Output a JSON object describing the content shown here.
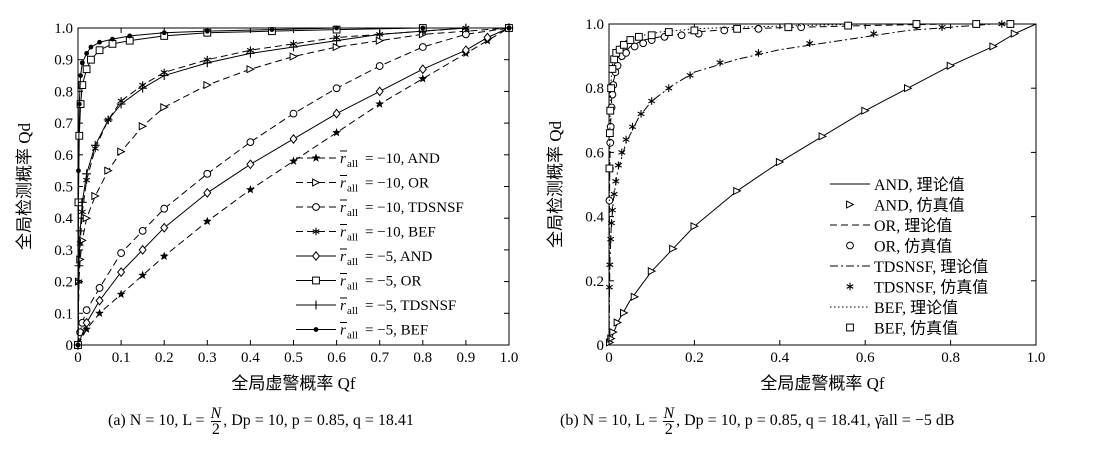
{
  "chart_data": [
    {
      "type": "line",
      "panel_label": "(a)",
      "caption": "(a) N = 10, L = N/2, Dp = 10, p = 0.85, q = 18.41",
      "caption_parts": {
        "prefix": "(a) N = 10, L = ",
        "frac_num": "N",
        "frac_den": "2",
        "suffix": ", Dp = 10, p = 0.85, q = 18.41"
      },
      "xlabel": "全局虚警概率 Qf",
      "ylabel": "全局检测概率 Qd",
      "xlim": [
        0,
        1
      ],
      "ylim": [
        0,
        1
      ],
      "xticks": [
        "0",
        "0.1",
        "0.2",
        "0.3",
        "0.4",
        "0.5",
        "0.6",
        "0.7",
        "0.8",
        "0.9",
        "1.0"
      ],
      "yticks": [
        "0",
        "0.1",
        "0.2",
        "0.3",
        "0.4",
        "0.5",
        "0.6",
        "0.7",
        "0.8",
        "0.9",
        "1.0"
      ],
      "grid": false,
      "legend_position": "bottom-right",
      "series": [
        {
          "name": "r̄all = −10, AND",
          "line": "dashed",
          "marker": "star",
          "x": [
            0,
            0.02,
            0.05,
            0.1,
            0.15,
            0.2,
            0.3,
            0.4,
            0.5,
            0.6,
            0.7,
            0.8,
            0.9,
            0.95,
            1.0
          ],
          "y": [
            0,
            0.05,
            0.1,
            0.16,
            0.22,
            0.28,
            0.39,
            0.49,
            0.58,
            0.67,
            0.76,
            0.84,
            0.92,
            0.96,
            1.0
          ]
        },
        {
          "name": "r̄all = −10, OR",
          "line": "dashed",
          "marker": "triangle",
          "x": [
            0,
            0.002,
            0.005,
            0.01,
            0.02,
            0.04,
            0.07,
            0.1,
            0.15,
            0.2,
            0.3,
            0.4,
            0.5,
            0.6,
            0.7,
            0.8,
            0.9,
            1.0
          ],
          "y": [
            0,
            0.2,
            0.27,
            0.33,
            0.4,
            0.47,
            0.55,
            0.61,
            0.69,
            0.75,
            0.82,
            0.87,
            0.91,
            0.94,
            0.96,
            0.98,
            0.99,
            1.0
          ]
        },
        {
          "name": "r̄all = −10, TDSNSF",
          "line": "dashed",
          "marker": "circle",
          "x": [
            0,
            0.005,
            0.01,
            0.02,
            0.05,
            0.1,
            0.15,
            0.2,
            0.3,
            0.4,
            0.5,
            0.6,
            0.7,
            0.8,
            0.9,
            1.0
          ],
          "y": [
            0,
            0.04,
            0.07,
            0.11,
            0.18,
            0.29,
            0.36,
            0.43,
            0.54,
            0.64,
            0.73,
            0.81,
            0.88,
            0.94,
            0.98,
            1.0
          ]
        },
        {
          "name": "r̄all = −10, BEF",
          "line": "dashed",
          "marker": "asterisk",
          "x": [
            0,
            0.002,
            0.005,
            0.01,
            0.02,
            0.04,
            0.07,
            0.1,
            0.15,
            0.2,
            0.3,
            0.4,
            0.5,
            0.6,
            0.7,
            0.8,
            0.9,
            1.0
          ],
          "y": [
            0,
            0.2,
            0.32,
            0.42,
            0.52,
            0.62,
            0.71,
            0.77,
            0.82,
            0.86,
            0.9,
            0.93,
            0.95,
            0.97,
            0.98,
            0.99,
            1.0,
            1.0
          ]
        },
        {
          "name": "r̄all = −5, AND",
          "line": "solid",
          "marker": "diamond",
          "x": [
            0,
            0.02,
            0.05,
            0.1,
            0.15,
            0.2,
            0.3,
            0.4,
            0.5,
            0.6,
            0.7,
            0.8,
            0.9,
            0.95,
            1.0
          ],
          "y": [
            0,
            0.07,
            0.14,
            0.23,
            0.3,
            0.37,
            0.48,
            0.57,
            0.65,
            0.73,
            0.8,
            0.87,
            0.93,
            0.97,
            1.0
          ]
        },
        {
          "name": "r̄all = −5, OR",
          "line": "solid",
          "marker": "square",
          "x": [
            0,
            0.001,
            0.003,
            0.006,
            0.01,
            0.02,
            0.03,
            0.05,
            0.08,
            0.12,
            0.2,
            0.3,
            0.45,
            0.6,
            0.8,
            1.0
          ],
          "y": [
            0,
            0.45,
            0.66,
            0.76,
            0.82,
            0.87,
            0.9,
            0.93,
            0.95,
            0.96,
            0.975,
            0.985,
            0.99,
            0.995,
            1.0,
            1.0
          ]
        },
        {
          "name": "r̄all = −5, TDSNSF",
          "line": "solid",
          "marker": "plus",
          "x": [
            0,
            0.002,
            0.005,
            0.01,
            0.02,
            0.04,
            0.07,
            0.1,
            0.15,
            0.2,
            0.3,
            0.4,
            0.5,
            0.6,
            0.7,
            0.8,
            0.9,
            1.0
          ],
          "y": [
            0,
            0.25,
            0.36,
            0.45,
            0.54,
            0.63,
            0.71,
            0.76,
            0.81,
            0.85,
            0.89,
            0.92,
            0.94,
            0.96,
            0.98,
            0.99,
            1.0,
            1.0
          ]
        },
        {
          "name": "r̄all = −5, BEF",
          "line": "solid",
          "marker": "dot",
          "x": [
            0,
            0.001,
            0.003,
            0.006,
            0.01,
            0.02,
            0.03,
            0.05,
            0.08,
            0.12,
            0.2,
            0.3,
            0.45,
            0.6,
            0.8,
            1.0
          ],
          "y": [
            0,
            0.55,
            0.76,
            0.85,
            0.89,
            0.92,
            0.94,
            0.955,
            0.965,
            0.975,
            0.985,
            0.99,
            0.995,
            1.0,
            1.0,
            1.0
          ]
        }
      ],
      "legend": [
        {
          "prefix": "r",
          "sub": "all",
          "value": "= −10, AND"
        },
        {
          "prefix": "r",
          "sub": "all",
          "value": "= −10, OR"
        },
        {
          "prefix": "r",
          "sub": "all",
          "value": "= −10, TDSNSF"
        },
        {
          "prefix": "r",
          "sub": "all",
          "value": "= −10, BEF"
        },
        {
          "prefix": "r",
          "sub": "all",
          "value": "= −5, AND"
        },
        {
          "prefix": "r",
          "sub": "all",
          "value": "= −5, OR"
        },
        {
          "prefix": "r",
          "sub": "all",
          "value": "= −5, TDSNSF"
        },
        {
          "prefix": "r",
          "sub": "all",
          "value": "= −5, BEF"
        }
      ]
    },
    {
      "type": "line",
      "panel_label": "(b)",
      "caption": "(b) N = 10, L = N/2, Dp = 10, p = 0.85, q = 18.41, γ̄all = −5 dB",
      "caption_parts": {
        "prefix": "(b) N = 10, L = ",
        "frac_num": "N",
        "frac_den": "2",
        "suffix": ", Dp = 10, p = 0.85, q = 18.41, γ̄all = −5 dB"
      },
      "xlabel": "全局虚警概率 Qf",
      "ylabel": "全局检测概率 Qd",
      "xlim": [
        0,
        1
      ],
      "ylim": [
        0,
        1
      ],
      "xticks": [
        "0",
        "0.2",
        "0.4",
        "0.6",
        "0.8",
        "1.0"
      ],
      "yticks": [
        "0",
        "0.2",
        "0.4",
        "0.6",
        "0.8",
        "1.0"
      ],
      "grid": false,
      "legend_position": "bottom-right",
      "series": [
        {
          "name": "AND, 理论值",
          "line": "solid",
          "marker": "none",
          "x": [
            0,
            0.02,
            0.05,
            0.1,
            0.15,
            0.2,
            0.3,
            0.4,
            0.5,
            0.6,
            0.7,
            0.8,
            0.9,
            0.95,
            1.0
          ],
          "y": [
            0,
            0.07,
            0.14,
            0.23,
            0.3,
            0.37,
            0.48,
            0.57,
            0.65,
            0.73,
            0.8,
            0.87,
            0.93,
            0.97,
            1.0
          ]
        },
        {
          "name": "AND, 仿真值",
          "line": "none",
          "marker": "triangle",
          "x": [
            0.002,
            0.005,
            0.01,
            0.02,
            0.035,
            0.06,
            0.1,
            0.15,
            0.2,
            0.3,
            0.4,
            0.5,
            0.6,
            0.7,
            0.8,
            0.9,
            0.95
          ],
          "y": [
            0.008,
            0.02,
            0.04,
            0.07,
            0.1,
            0.15,
            0.23,
            0.3,
            0.37,
            0.48,
            0.57,
            0.65,
            0.73,
            0.8,
            0.87,
            0.93,
            0.97
          ]
        },
        {
          "name": "OR, 理论值",
          "line": "dashed",
          "marker": "none",
          "x": [
            0,
            0.001,
            0.003,
            0.006,
            0.01,
            0.02,
            0.03,
            0.05,
            0.08,
            0.12,
            0.2,
            0.3,
            0.45,
            0.6,
            0.8,
            1.0
          ],
          "y": [
            0,
            0.45,
            0.66,
            0.76,
            0.82,
            0.87,
            0.9,
            0.93,
            0.95,
            0.96,
            0.975,
            0.985,
            0.99,
            0.995,
            1.0,
            1.0
          ]
        },
        {
          "name": "OR, 仿真值",
          "line": "none",
          "marker": "circle",
          "x": [
            0.001,
            0.002,
            0.003,
            0.004,
            0.006,
            0.008,
            0.01,
            0.015,
            0.02,
            0.03,
            0.04,
            0.06,
            0.08,
            0.1,
            0.13,
            0.17,
            0.21,
            0.27,
            0.35,
            0.45,
            0.56,
            0.72,
            0.86,
            0.94
          ],
          "y": [
            0.45,
            0.55,
            0.63,
            0.68,
            0.74,
            0.78,
            0.81,
            0.85,
            0.87,
            0.9,
            0.91,
            0.93,
            0.94,
            0.95,
            0.96,
            0.965,
            0.97,
            0.98,
            0.985,
            0.99,
            0.995,
            0.997,
            1.0,
            1.0
          ]
        },
        {
          "name": "TDSNSF, 理论值",
          "line": "dashdot",
          "marker": "none",
          "x": [
            0,
            0.002,
            0.005,
            0.01,
            0.02,
            0.04,
            0.07,
            0.1,
            0.15,
            0.2,
            0.3,
            0.4,
            0.5,
            0.6,
            0.7,
            0.8,
            0.9,
            1.0
          ],
          "y": [
            0,
            0.25,
            0.36,
            0.45,
            0.54,
            0.63,
            0.71,
            0.76,
            0.81,
            0.85,
            0.89,
            0.92,
            0.94,
            0.96,
            0.98,
            0.99,
            1.0,
            1.0
          ]
        },
        {
          "name": "TDSNSF, 仿真值",
          "line": "none",
          "marker": "asterisk",
          "x": [
            0.001,
            0.002,
            0.004,
            0.006,
            0.008,
            0.012,
            0.016,
            0.022,
            0.03,
            0.04,
            0.055,
            0.075,
            0.1,
            0.14,
            0.19,
            0.26,
            0.35,
            0.47,
            0.62,
            0.78,
            0.92
          ],
          "y": [
            0.18,
            0.25,
            0.33,
            0.38,
            0.42,
            0.47,
            0.51,
            0.56,
            0.6,
            0.64,
            0.68,
            0.72,
            0.76,
            0.8,
            0.84,
            0.88,
            0.91,
            0.94,
            0.97,
            0.99,
            1.0
          ]
        },
        {
          "name": "BEF, 理论值",
          "line": "dotted",
          "marker": "none",
          "x": [
            0,
            0.001,
            0.003,
            0.006,
            0.01,
            0.02,
            0.03,
            0.05,
            0.08,
            0.12,
            0.2,
            0.3,
            0.45,
            0.6,
            0.8,
            1.0
          ],
          "y": [
            0,
            0.55,
            0.76,
            0.85,
            0.89,
            0.92,
            0.94,
            0.955,
            0.965,
            0.975,
            0.985,
            0.99,
            0.995,
            1.0,
            1.0,
            1.0
          ]
        },
        {
          "name": "BEF, 仿真值",
          "line": "none",
          "marker": "square",
          "x": [
            0.001,
            0.002,
            0.003,
            0.005,
            0.008,
            0.012,
            0.017,
            0.025,
            0.035,
            0.05,
            0.07,
            0.1,
            0.14,
            0.2,
            0.3,
            0.42,
            0.56,
            0.72,
            0.86,
            0.94
          ],
          "y": [
            0.55,
            0.66,
            0.73,
            0.8,
            0.86,
            0.89,
            0.91,
            0.92,
            0.935,
            0.95,
            0.96,
            0.965,
            0.975,
            0.98,
            0.985,
            0.99,
            0.995,
            1.0,
            1.0,
            1.0
          ]
        }
      ],
      "legend": [
        {
          "text": "AND, 理论值"
        },
        {
          "text": "AND, 仿真值"
        },
        {
          "text": "OR, 理论值"
        },
        {
          "text": "OR, 仿真值"
        },
        {
          "text": "TDSNSF, 理论值"
        },
        {
          "text": "TDSNSF, 仿真值"
        },
        {
          "text": "BEF, 理论值"
        },
        {
          "text": "BEF, 仿真值"
        }
      ]
    }
  ]
}
